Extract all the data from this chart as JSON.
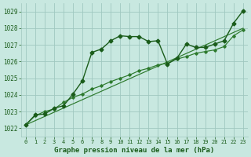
{
  "title": "Graphe pression niveau de la mer (hPa)",
  "bg_color": "#c8e8e0",
  "grid_color": "#a0c8c0",
  "line_color_dark": "#1a5c1a",
  "line_color_mid": "#2d7a2d",
  "x_ticks": [
    0,
    1,
    2,
    3,
    4,
    5,
    6,
    7,
    8,
    9,
    10,
    11,
    12,
    13,
    14,
    15,
    16,
    17,
    18,
    19,
    20,
    21,
    22,
    23
  ],
  "ylim": [
    1021.5,
    1029.5
  ],
  "yticks": [
    1022,
    1023,
    1024,
    1025,
    1026,
    1027,
    1028,
    1029
  ],
  "series1_x": [
    0,
    1,
    2,
    3,
    4,
    5,
    6,
    7,
    8,
    9,
    10,
    11,
    12,
    13,
    14,
    15,
    16,
    17,
    18,
    19,
    20,
    21,
    22,
    23
  ],
  "series1_y": [
    1022.2,
    1022.8,
    1022.85,
    1023.2,
    1023.35,
    1024.05,
    1024.85,
    1026.55,
    1026.75,
    1027.25,
    1027.55,
    1027.5,
    1027.5,
    1027.2,
    1027.25,
    1025.85,
    1026.2,
    1027.05,
    1026.85,
    1026.85,
    1027.05,
    1027.25,
    1028.3,
    1029.05
  ],
  "series2_x": [
    0,
    1,
    2,
    3,
    4,
    5,
    6,
    7,
    8,
    9,
    10,
    11,
    12,
    13,
    14,
    15,
    16,
    17,
    18,
    19,
    20,
    21,
    22,
    23
  ],
  "series2_y": [
    1022.2,
    1022.75,
    1023.0,
    1023.15,
    1023.55,
    1023.85,
    1024.05,
    1024.35,
    1024.55,
    1024.8,
    1025.0,
    1025.2,
    1025.45,
    1025.6,
    1025.8,
    1025.9,
    1026.15,
    1026.3,
    1026.5,
    1026.6,
    1026.7,
    1026.9,
    1027.55,
    1027.9
  ],
  "series3_x": [
    0,
    23
  ],
  "series3_y": [
    1022.2,
    1028.0
  ]
}
